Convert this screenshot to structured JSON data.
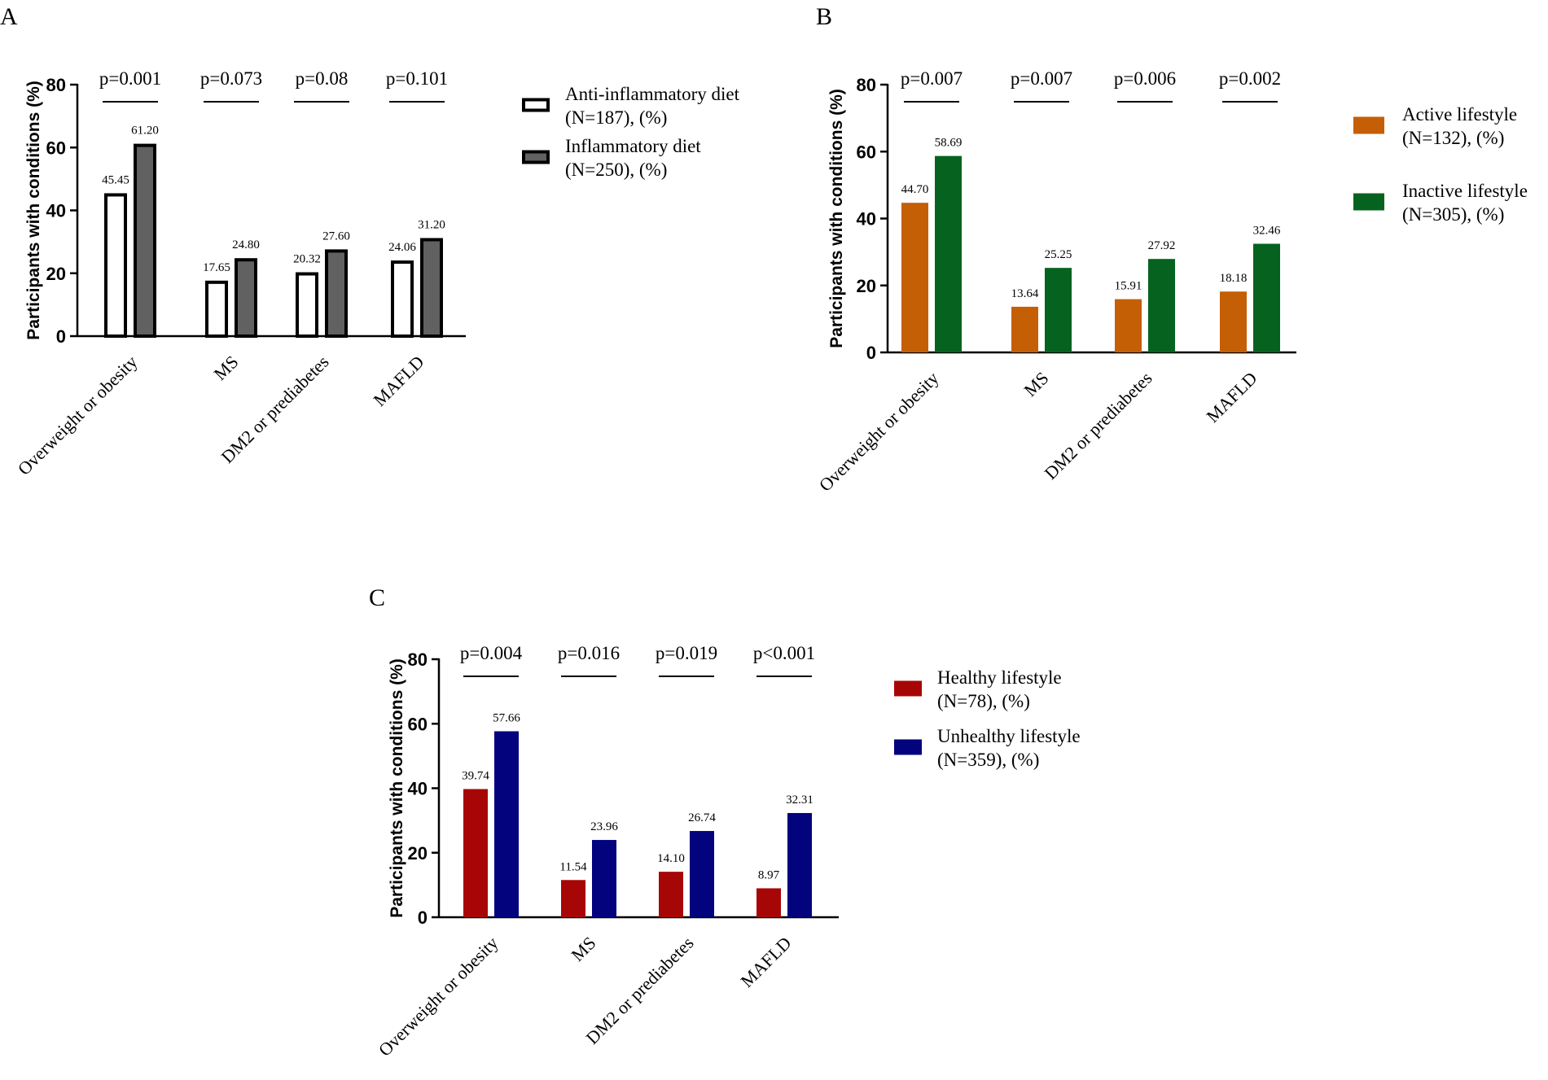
{
  "chart_data": [
    {
      "panel": "A",
      "type": "bar",
      "categories": [
        "Overweight or obesity",
        "MS",
        "DM2 or prediabetes",
        "MAFLD"
      ],
      "series": [
        {
          "name": "Anti-inflammatory diet (N=187), (%)",
          "legend_lines": [
            "Anti-inflammatory diet",
            "(N=187), (%)"
          ],
          "fill": "#ffffff",
          "stroke": "#000000",
          "values": [
            45.45,
            17.65,
            20.32,
            24.06
          ],
          "labels": [
            "45.45",
            "17.65",
            "20.32",
            "24.06"
          ]
        },
        {
          "name": "Inflammatory diet (N=250), (%)",
          "legend_lines": [
            "Inflammatory diet",
            "(N=250), (%)"
          ],
          "fill": "#616161",
          "stroke": "#000000",
          "values": [
            61.2,
            24.8,
            27.6,
            31.2
          ],
          "labels": [
            "61.20",
            "24.80",
            "27.60",
            "31.20"
          ]
        }
      ],
      "p_values": [
        "p=0.001",
        "p=0.073",
        "p=0.08",
        "p=0.101"
      ],
      "ylabel": "Participants with conditions (%)",
      "ylim": [
        0,
        80
      ],
      "yticks": [
        "0",
        "20",
        "40",
        "60",
        "80"
      ],
      "legend_position": "right"
    },
    {
      "panel": "B",
      "type": "bar",
      "categories": [
        "Overweight or obesity",
        "MS",
        "DM2 or prediabetes",
        "MAFLD"
      ],
      "series": [
        {
          "name": "Active lifestyle (N=132), (%)",
          "legend_lines": [
            "Active lifestyle",
            "(N=132), (%)"
          ],
          "fill": "#c45f06",
          "stroke": "none",
          "values": [
            44.7,
            13.64,
            15.91,
            18.18
          ],
          "labels": [
            "44.70",
            "13.64",
            "15.91",
            "18.18"
          ]
        },
        {
          "name": "Inactive lifestyle (N=305), (%)",
          "legend_lines": [
            "Inactive lifestyle",
            "(N=305), (%)"
          ],
          "fill": "#05631f",
          "stroke": "none",
          "values": [
            58.69,
            25.25,
            27.92,
            32.46
          ],
          "labels": [
            "58.69",
            "25.25",
            "27.92",
            "32.46"
          ]
        }
      ],
      "p_values": [
        "p=0.007",
        "p=0.007",
        "p=0.006",
        "p=0.002"
      ],
      "ylabel": "Participants with conditions (%)",
      "ylim": [
        0,
        80
      ],
      "yticks": [
        "0",
        "20",
        "40",
        "60",
        "80"
      ],
      "legend_position": "right"
    },
    {
      "panel": "C",
      "type": "bar",
      "categories": [
        "Overweight or obesity",
        "MS",
        "DM2 or prediabetes",
        "MAFLD"
      ],
      "series": [
        {
          "name": "Healthy lifestyle (N=78), (%)",
          "legend_lines": [
            "Healthy lifestyle",
            "(N=78), (%)"
          ],
          "fill": "#a70606",
          "stroke": "none",
          "values": [
            39.74,
            11.54,
            14.1,
            8.97
          ],
          "labels": [
            "39.74",
            "11.54",
            "14.10",
            "8.97"
          ]
        },
        {
          "name": "Unhealthy lifestyle (N=359), (%)",
          "legend_lines": [
            "Unhealthy lifestyle",
            "(N=359), (%)"
          ],
          "fill": "#02037d",
          "stroke": "none",
          "values": [
            57.66,
            23.96,
            26.74,
            32.31
          ],
          "labels": [
            "57.66",
            "23.96",
            "26.74",
            "32.31"
          ]
        }
      ],
      "p_values": [
        "p=0.004",
        "p=0.016",
        "p=0.019",
        "p<0.001"
      ],
      "ylabel": "Participants with conditions (%)",
      "ylim": [
        0,
        80
      ],
      "yticks": [
        "0",
        "20",
        "40",
        "60",
        "80"
      ],
      "legend_position": "right"
    }
  ]
}
